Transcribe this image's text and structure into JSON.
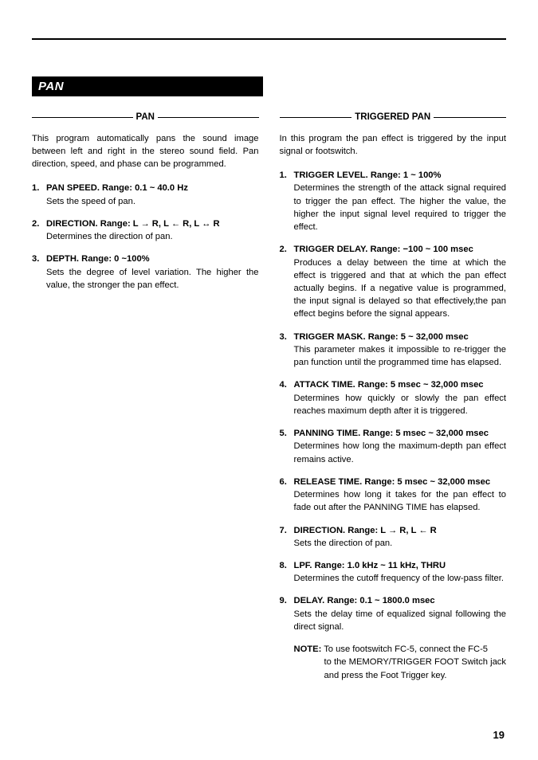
{
  "section_bar": "PAN",
  "page_number": "19",
  "left": {
    "heading": "PAN",
    "intro": "This program automatically pans the sound image between left and right in the stereo sound field. Pan direction, speed, and phase can be programmed.",
    "items": [
      {
        "n": "1.",
        "title": "PAN SPEED. Range: 0.1 ~ 40.0 Hz",
        "desc": "Sets the speed of pan."
      },
      {
        "n": "2.",
        "title": "DIRECTION. Range: L → R, L ← R, L ↔ R",
        "desc": "Determines the direction of pan."
      },
      {
        "n": "3.",
        "title": "DEPTH. Range: 0 ~100%",
        "desc": "Sets the degree of level variation. The higher the value, the stronger the pan effect."
      }
    ]
  },
  "right": {
    "heading": "TRIGGERED PAN",
    "intro": "In this program the pan effect is triggered by the input signal or footswitch.",
    "items": [
      {
        "n": "1.",
        "title": "TRIGGER LEVEL. Range: 1 ~ 100%",
        "desc": "Determines the strength of the attack signal required to trigger the pan effect. The higher the value, the higher the input signal level required to trigger the effect."
      },
      {
        "n": "2.",
        "title": "TRIGGER DELAY. Range: −100 ~ 100 msec",
        "desc": "Produces a delay between the time at which the effect is triggered and that at which the pan effect actually begins. If a negative value is programmed, the input signal is delayed so that effectively,the pan effect begins before the signal appears."
      },
      {
        "n": "3.",
        "title": "TRIGGER MASK. Range: 5 ~ 32,000 msec",
        "desc": "This parameter makes it impossible to re-trigger the pan function until the programmed time has elapsed."
      },
      {
        "n": "4.",
        "title": "ATTACK TIME. Range: 5 msec ~ 32,000 msec",
        "desc": "Determines how quickly or slowly the pan effect reaches maximum depth after it is triggered."
      },
      {
        "n": "5.",
        "title": "PANNING TIME. Range: 5 msec ~ 32,000 msec",
        "desc": "Determines how long the maximum-depth pan effect remains active."
      },
      {
        "n": "6.",
        "title": "RELEASE TIME. Range: 5 msec ~ 32,000 msec",
        "desc": "Determines how long it takes for the pan effect to fade out after the PANNING TIME has elapsed."
      },
      {
        "n": "7.",
        "title": "DIRECTION. Range: L → R, L ← R",
        "desc": "Sets the direction of pan."
      },
      {
        "n": "8.",
        "title": "LPF. Range: 1.0 kHz ~ 11 kHz, THRU",
        "desc": "Determines the cutoff frequency of the low-pass filter."
      },
      {
        "n": "9.",
        "title": "DELAY. Range: 0.1 ~ 1800.0 msec",
        "desc": "Sets the delay time of equalized signal following the direct signal."
      }
    ],
    "note_label": "NOTE:",
    "note_line1": "To use footswitch FC-5, connect the FC-5",
    "note_line2": "to the MEMORY/TRIGGER FOOT Switch jack and press the Foot Trigger key."
  }
}
